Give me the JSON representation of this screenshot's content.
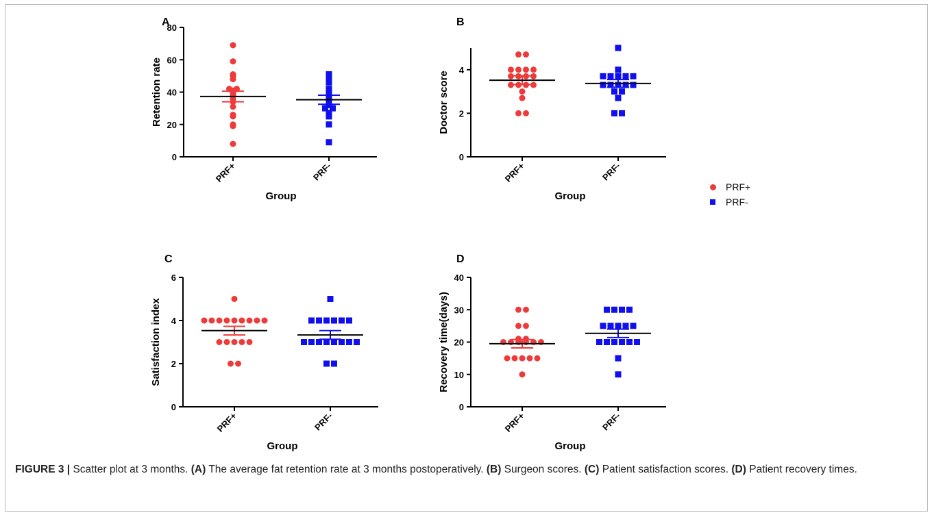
{
  "colors": {
    "prf_plus": "#ee3a3a",
    "prf_minus": "#1010ee",
    "axis": "#000000",
    "mean": "#000000"
  },
  "legend": {
    "placement": "right",
    "items": [
      {
        "label": "PRF+",
        "marker": "circle",
        "color": "#ee3a3a"
      },
      {
        "label": "PRF-",
        "marker": "square",
        "color": "#1010ee"
      }
    ]
  },
  "caption": {
    "figure_label": "FIGURE 3 |",
    "intro": " Scatter plot at 3 months. ",
    "a_tag": "(A)",
    "a_text": " The average fat retention rate at 3 months postoperatively. ",
    "b_tag": "(B)",
    "b_text": " Surgeon scores. ",
    "c_tag": "(C)",
    "c_text": " Patient satisfaction scores. ",
    "d_tag": "(D)",
    "d_text": " Patient recovery times."
  },
  "chart_data": [
    {
      "panel": "A",
      "type": "scatter",
      "ylabel": "Retention rate",
      "xlabel": "Group",
      "ylim": [
        0,
        80
      ],
      "yticks": [
        0,
        20,
        40,
        60,
        80
      ],
      "categories": [
        "PRF+",
        "PRF-"
      ],
      "series": [
        {
          "name": "PRF+",
          "marker": "circle",
          "mean": 37.3,
          "sem_low": 34.0,
          "sem_high": 40.6,
          "values": [
            69,
            59,
            51,
            50,
            48,
            42,
            42,
            41,
            40,
            39,
            38,
            36,
            34,
            31,
            26,
            25,
            20,
            19,
            8
          ]
        },
        {
          "name": "PRF-",
          "marker": "square",
          "mean": 35.3,
          "sem_low": 32.5,
          "sem_high": 38.1,
          "values": [
            51,
            50,
            49,
            48,
            47,
            46,
            42,
            40,
            38,
            36,
            33,
            32,
            30,
            30,
            27,
            25,
            20,
            9
          ]
        }
      ]
    },
    {
      "panel": "B",
      "type": "scatter",
      "ylabel": "Doctor score",
      "xlabel": "Group",
      "ylim": [
        0,
        5
      ],
      "yticks": [
        0,
        2,
        4
      ],
      "categories": [
        "PRF+",
        "PRF-"
      ],
      "series": [
        {
          "name": "PRF+",
          "marker": "circle",
          "mean": 3.52,
          "sem_low": 3.32,
          "sem_high": 3.72,
          "values": [
            4.7,
            4.7,
            4.0,
            4.0,
            4.0,
            4.0,
            3.7,
            3.7,
            3.7,
            3.7,
            3.3,
            3.3,
            3.3,
            3.3,
            3.0,
            2.7,
            2.0,
            2.0
          ]
        },
        {
          "name": "PRF-",
          "marker": "square",
          "mean": 3.37,
          "sem_low": 3.19,
          "sem_high": 3.55,
          "values": [
            5.0,
            4.0,
            3.7,
            3.7,
            3.7,
            3.7,
            3.7,
            3.3,
            3.3,
            3.3,
            3.3,
            3.3,
            3.0,
            3.0,
            2.7,
            2.0,
            2.0
          ]
        }
      ]
    },
    {
      "panel": "C",
      "type": "scatter",
      "ylabel": "Satisfaction index",
      "xlabel": "Group",
      "ylim": [
        0,
        6
      ],
      "yticks": [
        0,
        2,
        4,
        6
      ],
      "categories": [
        "PRF+",
        "PRF-"
      ],
      "series": [
        {
          "name": "PRF+",
          "marker": "circle",
          "mean": 3.53,
          "sem_low": 3.33,
          "sem_high": 3.73,
          "values": [
            5,
            4,
            4,
            4,
            4,
            4,
            4,
            4,
            4,
            4,
            3,
            3,
            3,
            3,
            3,
            2,
            2
          ]
        },
        {
          "name": "PRF-",
          "marker": "square",
          "mean": 3.33,
          "sem_low": 3.13,
          "sem_high": 3.53,
          "values": [
            5,
            4,
            4,
            4,
            4,
            4,
            4,
            3,
            3,
            3,
            3,
            3,
            3,
            3,
            3,
            2,
            2
          ]
        }
      ]
    },
    {
      "panel": "D",
      "type": "scatter",
      "ylabel": "Recovery time(days)",
      "xlabel": "Group",
      "ylim": [
        0,
        40
      ],
      "yticks": [
        0,
        10,
        20,
        30,
        40
      ],
      "categories": [
        "PRF+",
        "PRF-"
      ],
      "series": [
        {
          "name": "PRF+",
          "marker": "circle",
          "mean": 19.5,
          "sem_low": 18.2,
          "sem_high": 20.8,
          "values": [
            30,
            30,
            25,
            25,
            21,
            21,
            20,
            20,
            20,
            20,
            20,
            20,
            15,
            15,
            15,
            15,
            15,
            10
          ]
        },
        {
          "name": "PRF-",
          "marker": "square",
          "mean": 22.7,
          "sem_low": 21.4,
          "sem_high": 24.0,
          "values": [
            30,
            30,
            30,
            30,
            25,
            25,
            25,
            25,
            25,
            20,
            20,
            20,
            20,
            20,
            20,
            15,
            10
          ]
        }
      ]
    }
  ]
}
